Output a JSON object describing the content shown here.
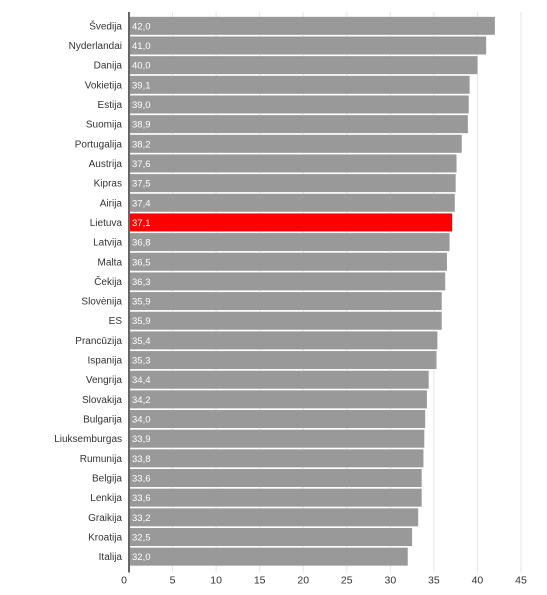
{
  "chart_data": {
    "type": "bar",
    "orientation": "horizontal",
    "categories": [
      "Švedija",
      "Nyderlandai",
      "Danija",
      "Vokietija",
      "Estija",
      "Suomija",
      "Portugalija",
      "Austrija",
      "Kipras",
      "Airija",
      "Lietuva",
      "Latvija",
      "Malta",
      "Čekija",
      "Slovėnija",
      "ES",
      "Prancūzija",
      "Ispanija",
      "Vengrija",
      "Slovakija",
      "Bulgarija",
      "Liuksemburgas",
      "Rumunija",
      "Belgija",
      "Lenkija",
      "Graikija",
      "Kroatija",
      "Italija"
    ],
    "values": [
      42.0,
      41.0,
      40.0,
      39.1,
      39.0,
      38.9,
      38.2,
      37.6,
      37.5,
      37.4,
      37.1,
      36.8,
      36.5,
      36.3,
      35.9,
      35.9,
      35.4,
      35.3,
      34.4,
      34.2,
      34.0,
      33.9,
      33.8,
      33.6,
      33.6,
      33.2,
      32.5,
      32.0
    ],
    "value_labels": [
      "42,0",
      "41,0",
      "40,0",
      "39,1",
      "39,0",
      "38,9",
      "38,2",
      "37,6",
      "37,5",
      "37,4",
      "37,1",
      "36,8",
      "36,5",
      "36,3",
      "35,9",
      "35,9",
      "35,4",
      "35,3",
      "34,4",
      "34,2",
      "34,0",
      "33,9",
      "33,8",
      "33,6",
      "33,6",
      "33,2",
      "32,5",
      "32,0"
    ],
    "highlight": "Lietuva",
    "xlim": [
      0,
      45
    ],
    "ticks": [
      "0",
      "5",
      "10",
      "15",
      "20",
      "25",
      "30",
      "35",
      "40",
      "45"
    ],
    "tick_values": [
      0,
      5,
      10,
      15,
      20,
      25,
      30,
      35,
      40,
      45
    ],
    "grid": true,
    "colors": {
      "bar": "#999999",
      "highlight": "#ff0000",
      "grid": "#e6e6e6",
      "axis": "#333333"
    }
  }
}
